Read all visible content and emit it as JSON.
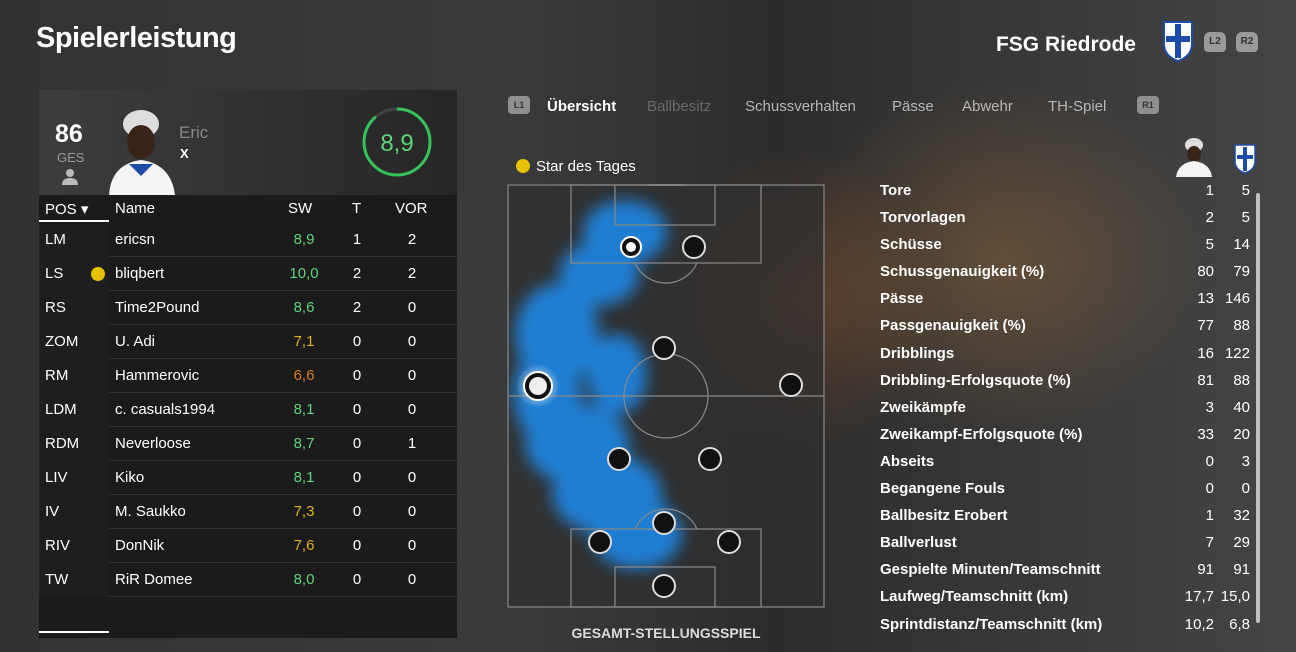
{
  "header": {
    "title": "Spielerleistung",
    "club": "FSG Riedrode",
    "btn_l2": "L2",
    "btn_r2": "R2"
  },
  "player": {
    "overall": "86",
    "overall_label": "GES",
    "first_name": "Eric",
    "last_name": "X",
    "rating": "8,9"
  },
  "table": {
    "headers": {
      "pos": "POS ▾",
      "name": "Name",
      "sw": "SW",
      "t": "T",
      "vor": "VOR"
    },
    "rows": [
      {
        "pos": "LM",
        "name": "ericsn",
        "sw": "8,9",
        "t": "1",
        "vor": "2",
        "color": "#5fd47a",
        "star": false
      },
      {
        "pos": "LS",
        "name": "bliqbert",
        "sw": "10,0",
        "t": "2",
        "vor": "2",
        "color": "#5fd47a",
        "star": true
      },
      {
        "pos": "RS",
        "name": "Time2Pound",
        "sw": "8,6",
        "t": "2",
        "vor": "0",
        "color": "#5fd47a",
        "star": false
      },
      {
        "pos": "ZOM",
        "name": "U. Adi",
        "sw": "7,1",
        "t": "0",
        "vor": "0",
        "color": "#e0b020",
        "star": false
      },
      {
        "pos": "RM",
        "name": "Hammerovic",
        "sw": "6,6",
        "t": "0",
        "vor": "0",
        "color": "#e07a20",
        "star": false
      },
      {
        "pos": "LDM",
        "name": "c. casuals1994",
        "sw": "8,1",
        "t": "0",
        "vor": "0",
        "color": "#5fd47a",
        "star": false
      },
      {
        "pos": "RDM",
        "name": "Neverloose",
        "sw": "8,7",
        "t": "0",
        "vor": "1",
        "color": "#5fd47a",
        "star": false
      },
      {
        "pos": "LIV",
        "name": "Kiko",
        "sw": "8,1",
        "t": "0",
        "vor": "0",
        "color": "#5fd47a",
        "star": false
      },
      {
        "pos": "IV",
        "name": "M. Saukko",
        "sw": "7,3",
        "t": "0",
        "vor": "0",
        "color": "#e0b020",
        "star": false
      },
      {
        "pos": "RIV",
        "name": "DonNik",
        "sw": "7,6",
        "t": "0",
        "vor": "0",
        "color": "#e0b020",
        "star": false
      },
      {
        "pos": "TW",
        "name": "RiR Domee",
        "sw": "8,0",
        "t": "0",
        "vor": "0",
        "color": "#5fd47a",
        "star": false
      }
    ]
  },
  "tabs": {
    "btn_l1": "L1",
    "btn_r1": "R1",
    "items": [
      "Übersicht",
      "Ballbesitz",
      "Schussverhalten",
      "Pässe",
      "Abwehr",
      "TH-Spiel"
    ],
    "active": "Übersicht"
  },
  "pitch": {
    "star_label": "Star des Tages",
    "caption": "GESAMT-STELLUNGSSPIEL"
  },
  "stats": [
    {
      "label": "Tore",
      "player": "1",
      "team": "5"
    },
    {
      "label": "Torvorlagen",
      "player": "2",
      "team": "5"
    },
    {
      "label": "Schüsse",
      "player": "5",
      "team": "14"
    },
    {
      "label": "Schussgenauigkeit (%)",
      "player": "80",
      "team": "79"
    },
    {
      "label": "Pässe",
      "player": "13",
      "team": "146"
    },
    {
      "label": "Passgenauigkeit (%)",
      "player": "77",
      "team": "88"
    },
    {
      "label": "Dribblings",
      "player": "16",
      "team": "122"
    },
    {
      "label": "Dribbling-Erfolgsquote (%)",
      "player": "81",
      "team": "88"
    },
    {
      "label": "Zweikämpfe",
      "player": "3",
      "team": "40"
    },
    {
      "label": "Zweikampf-Erfolgsquote (%)",
      "player": "33",
      "team": "20"
    },
    {
      "label": "Abseits",
      "player": "0",
      "team": "3"
    },
    {
      "label": "Begangene Fouls",
      "player": "0",
      "team": "0"
    },
    {
      "label": "Ballbesitz Erobert",
      "player": "1",
      "team": "32"
    },
    {
      "label": "Ballverlust",
      "player": "7",
      "team": "29"
    },
    {
      "label": "Gespielte Minuten/Teamschnitt",
      "player": "91",
      "team": "91"
    },
    {
      "label": "Laufweg/Teamschnitt (km)",
      "player": "17,7",
      "team": "15,0"
    },
    {
      "label": "Sprintdistanz/Teamschnitt (km)",
      "player": "10,2",
      "team": "6,8"
    }
  ]
}
